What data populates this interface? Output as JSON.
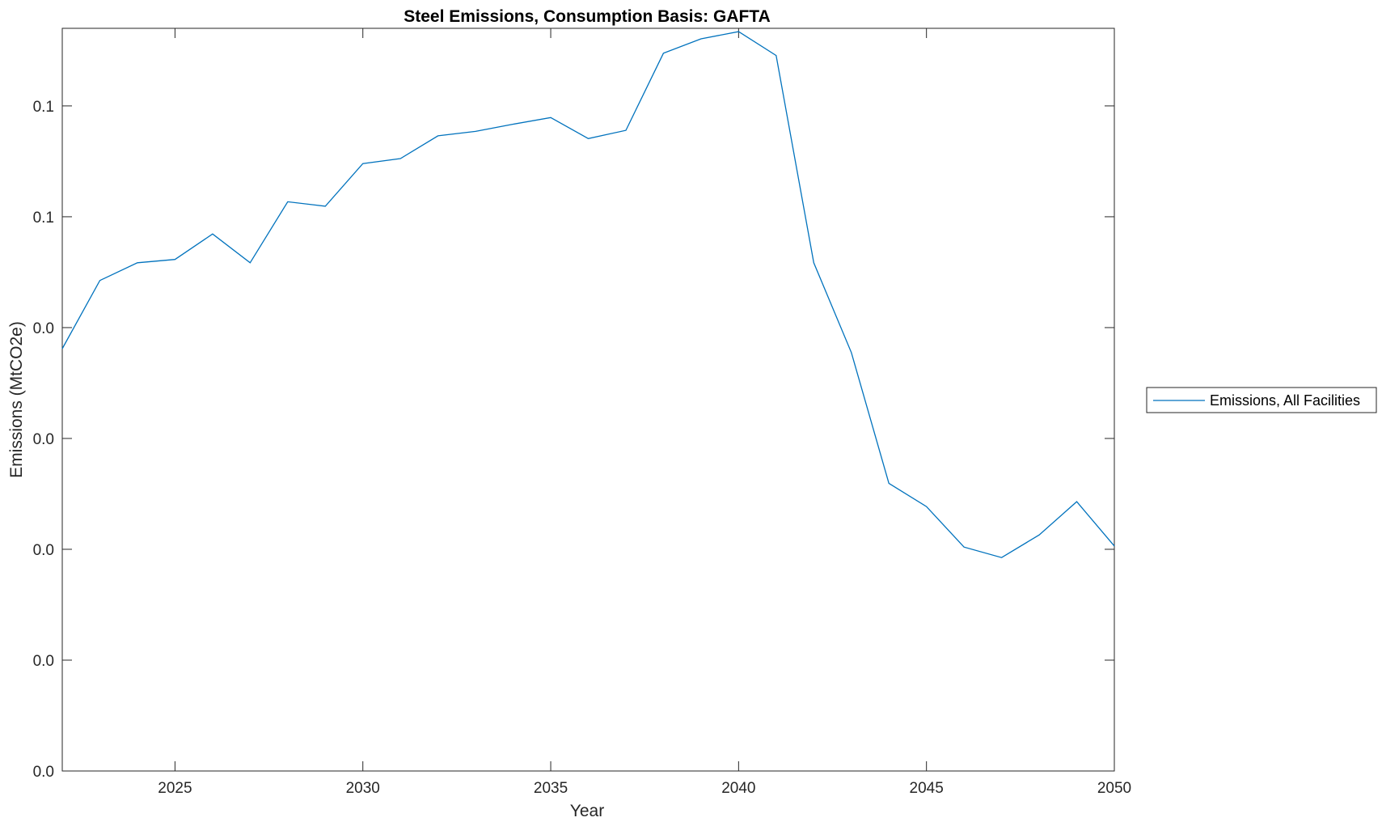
{
  "chart_data": {
    "type": "line",
    "title": "Steel Emissions, Consumption Basis: GAFTA",
    "xlabel": "Year",
    "ylabel": "Emissions (MtCO2e)",
    "xlim": [
      2022,
      2050
    ],
    "ylim": [
      0,
      0.134
    ],
    "x_ticks": [
      2025,
      2030,
      2035,
      2040,
      2045,
      2050
    ],
    "x_tick_labels": [
      "2025",
      "2030",
      "2035",
      "2040",
      "2045",
      "2050"
    ],
    "y_ticks": [
      0,
      0.02,
      0.04,
      0.06,
      0.08,
      0.1,
      0.12
    ],
    "y_tick_labels": [
      "0.0",
      "0.0",
      "0.0",
      "0.0",
      "0.0",
      "0.1",
      "0.1"
    ],
    "grid": false,
    "legend_position": "outside-right",
    "series": [
      {
        "name": "Emissions, All Facilities",
        "color": "#0072BD",
        "x": [
          2022,
          2023,
          2024,
          2025,
          2026,
          2027,
          2028,
          2029,
          2030,
          2031,
          2032,
          2033,
          2034,
          2035,
          2036,
          2037,
          2038,
          2039,
          2040,
          2041,
          2042,
          2043,
          2044,
          2045,
          2046,
          2047,
          2048,
          2049,
          2050
        ],
        "values": [
          0.0762,
          0.0885,
          0.0917,
          0.0923,
          0.0969,
          0.0917,
          0.1027,
          0.1019,
          0.1096,
          0.1105,
          0.1146,
          0.1154,
          0.1167,
          0.1179,
          0.1141,
          0.1156,
          0.1295,
          0.1321,
          0.1334,
          0.1291,
          0.0917,
          0.0755,
          0.0519,
          0.0477,
          0.0404,
          0.0385,
          0.0426,
          0.0486,
          0.0406
        ]
      }
    ]
  }
}
